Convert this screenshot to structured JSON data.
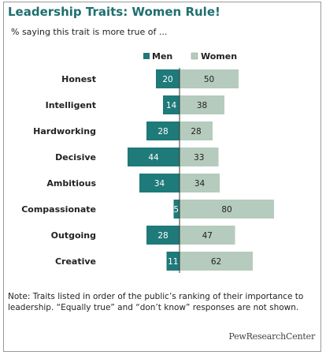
{
  "header": {
    "title": "Leadership Traits: Women Rule!",
    "subtitle": "% saying this trait is more true of ..."
  },
  "chart_data": {
    "type": "bar",
    "orientation": "diverging-horizontal",
    "categories": [
      "Honest",
      "Intelligent",
      "Hardworking",
      "Decisive",
      "Ambitious",
      "Compassionate",
      "Outgoing",
      "Creative"
    ],
    "series": [
      {
        "name": "Men",
        "values": [
          20,
          14,
          28,
          44,
          34,
          5,
          28,
          11
        ],
        "color": "#1f7a7a"
      },
      {
        "name": "Women",
        "values": [
          50,
          38,
          28,
          33,
          34,
          80,
          47,
          62
        ],
        "color": "#b5cbbd"
      }
    ],
    "legend_position": "top-center"
  },
  "footer": {
    "note": "Note: Traits listed in order of the public’s ranking of their importance to leadership. “Equally true” and “don’t know” responses are not shown.",
    "source": "PewResearchCenter"
  },
  "colors": {
    "title": "#1f6f6f",
    "men_bar": "#1f7a7a",
    "women_bar": "#b5cbbd"
  }
}
